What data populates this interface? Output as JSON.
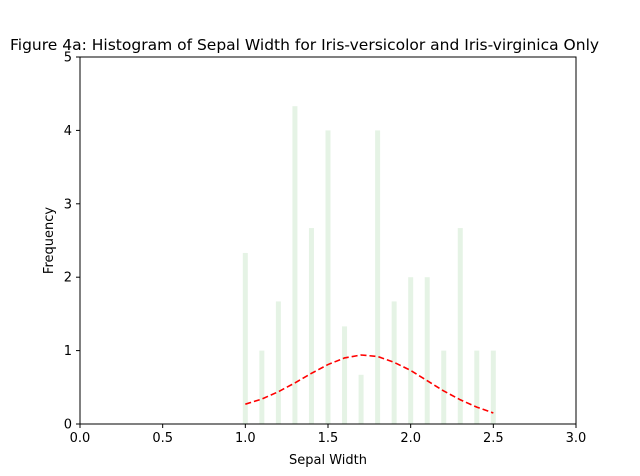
{
  "chart_data": {
    "type": "bar",
    "title": "Figure 4a: Histogram of Sepal Width for Iris-versicolor and Iris-virginica Only",
    "xlabel": "Sepal Width",
    "ylabel": "Frequency",
    "xlim": [
      0.0,
      3.0
    ],
    "ylim": [
      0,
      5
    ],
    "xticks": [
      "0.0",
      "0.5",
      "1.0",
      "1.5",
      "2.0",
      "2.5",
      "3.0"
    ],
    "yticks": [
      "0",
      "1",
      "2",
      "3",
      "4",
      "5"
    ],
    "bar_color": "#2ca02c",
    "bar_opacity": 0.12,
    "bars": [
      {
        "x": 1.0,
        "value": 2.33
      },
      {
        "x": 1.1,
        "value": 1.0
      },
      {
        "x": 1.2,
        "value": 1.67
      },
      {
        "x": 1.3,
        "value": 4.33
      },
      {
        "x": 1.4,
        "value": 2.67
      },
      {
        "x": 1.5,
        "value": 4.0
      },
      {
        "x": 1.6,
        "value": 1.33
      },
      {
        "x": 1.7,
        "value": 0.67
      },
      {
        "x": 1.8,
        "value": 4.0
      },
      {
        "x": 1.9,
        "value": 1.67
      },
      {
        "x": 2.0,
        "value": 2.0
      },
      {
        "x": 2.1,
        "value": 2.0
      },
      {
        "x": 2.2,
        "value": 1.0
      },
      {
        "x": 2.3,
        "value": 2.67
      },
      {
        "x": 2.4,
        "value": 1.0
      },
      {
        "x": 2.5,
        "value": 1.0
      }
    ],
    "curve": {
      "style": "dashed",
      "color": "#ff0000",
      "points": [
        {
          "x": 1.0,
          "y": 0.27
        },
        {
          "x": 1.1,
          "y": 0.34
        },
        {
          "x": 1.2,
          "y": 0.44
        },
        {
          "x": 1.3,
          "y": 0.56
        },
        {
          "x": 1.4,
          "y": 0.69
        },
        {
          "x": 1.5,
          "y": 0.81
        },
        {
          "x": 1.6,
          "y": 0.9
        },
        {
          "x": 1.7,
          "y": 0.94
        },
        {
          "x": 1.8,
          "y": 0.92
        },
        {
          "x": 1.9,
          "y": 0.84
        },
        {
          "x": 2.0,
          "y": 0.73
        },
        {
          "x": 2.1,
          "y": 0.59
        },
        {
          "x": 2.2,
          "y": 0.45
        },
        {
          "x": 2.3,
          "y": 0.33
        },
        {
          "x": 2.4,
          "y": 0.23
        },
        {
          "x": 2.5,
          "y": 0.15
        }
      ]
    },
    "grid": false,
    "legend": "none"
  }
}
